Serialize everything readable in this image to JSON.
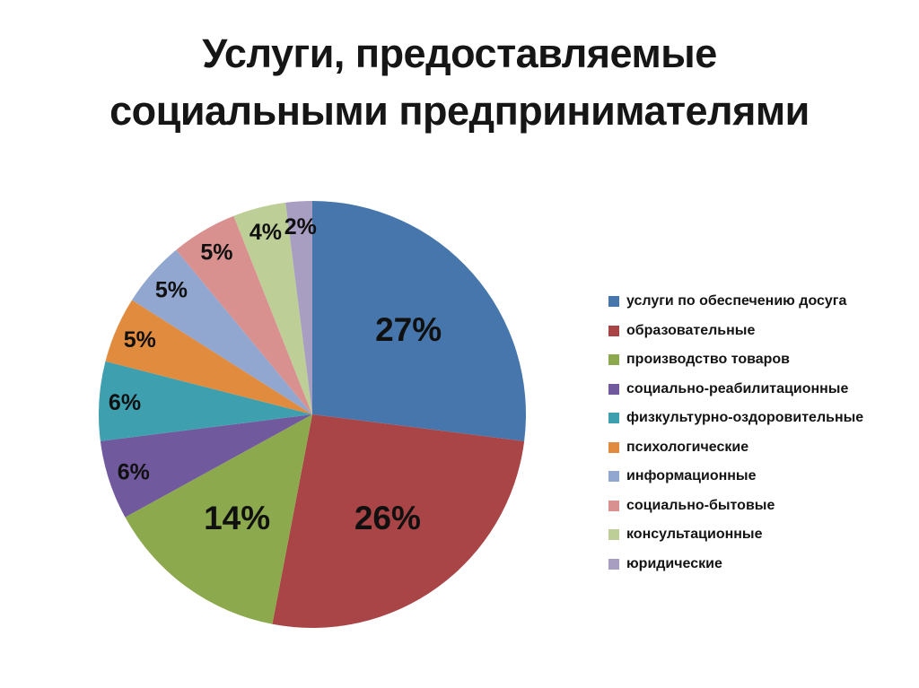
{
  "title_line1": "Услуги, предоставляемые",
  "title_line2": "социальными предпринимателями",
  "chart_data": {
    "type": "pie",
    "title": "Услуги, предоставляемые социальными предпринимателями",
    "unit": "%",
    "start_angle_deg": 0,
    "direction": "clockwise",
    "legend_position": "right",
    "background_color": "#ffffff",
    "label_color": "#101010",
    "slices": [
      {
        "label": "услуги по обеспечению досуга",
        "value": 27,
        "color": "#4676AC"
      },
      {
        "label": "образовательные",
        "value": 26,
        "color": "#A94546"
      },
      {
        "label": "производство товаров",
        "value": 14,
        "color": "#8CAA4D"
      },
      {
        "label": "социально-реабилитационные",
        "value": 6,
        "color": "#71599E"
      },
      {
        "label": "физкультурно-оздоровительные",
        "value": 6,
        "color": "#3E9FAF"
      },
      {
        "label": "психологические",
        "value": 5,
        "color": "#E08B3E"
      },
      {
        "label": "информационные",
        "value": 5,
        "color": "#92A7D0"
      },
      {
        "label": "социально-бытовые",
        "value": 5,
        "color": "#D9918F"
      },
      {
        "label": "консультационные",
        "value": 4,
        "color": "#BDCF97"
      },
      {
        "label": "юридические",
        "value": 2,
        "color": "#A89EC2"
      }
    ],
    "data_labels": [
      "27%",
      "26%",
      "14%",
      "6%",
      "6%",
      "5%",
      "5%",
      "5%",
      "4%",
      "2%"
    ]
  }
}
